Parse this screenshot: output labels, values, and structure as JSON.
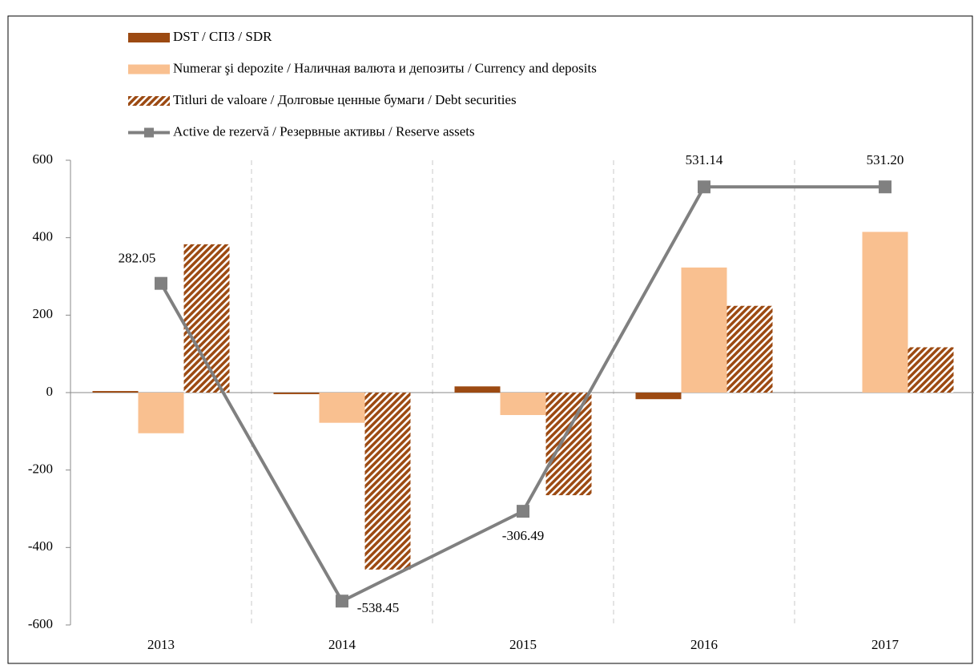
{
  "chart_data": {
    "type": "bar_line",
    "categories": [
      "2013",
      "2014",
      "2015",
      "2016",
      "2017"
    ],
    "series": [
      {
        "name": "DST / СПЗ / SDR",
        "type": "bar",
        "color": "#9c4a12",
        "values": [
          4,
          -4,
          16,
          -17,
          0
        ]
      },
      {
        "name": "Numerar şi depozite / Наличная валюта и депозиты / Currency and deposits",
        "type": "bar",
        "color": "#f9c090",
        "values": [
          -105,
          -78,
          -58,
          323,
          415
        ]
      },
      {
        "name": "Titluri de valoare / Долговые ценные бумаги / Debt securities",
        "type": "bar",
        "color": "#9c4a12",
        "pattern": "diagonal-hatch",
        "values": [
          383,
          -457,
          -265,
          224,
          117
        ]
      },
      {
        "name": "Active de rezervă / Резервные активы / Reserve assets",
        "type": "line",
        "color": "#808080",
        "values": [
          282.05,
          -538.45,
          -306.49,
          531.14,
          531.2
        ],
        "value_labels": [
          "282.05",
          "-538.45",
          "-306.49",
          "531.14",
          "531.20"
        ]
      }
    ],
    "ylim": [
      -600,
      600
    ],
    "yticks": [
      -600,
      -400,
      -200,
      0,
      200,
      400,
      600
    ],
    "grid": "vertical-dashed",
    "legend": "top-left"
  }
}
